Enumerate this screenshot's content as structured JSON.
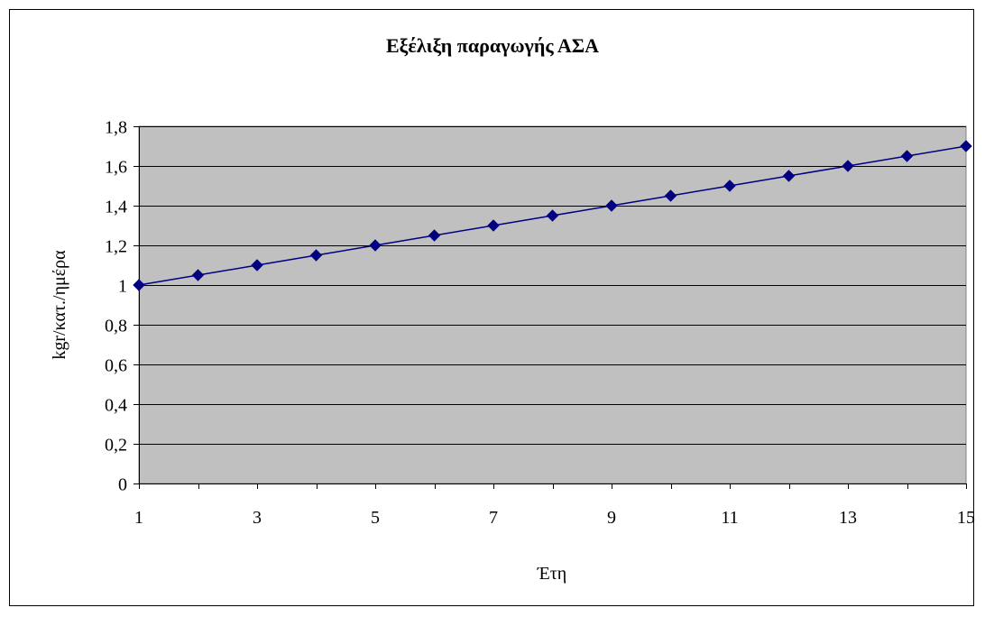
{
  "chart_data": {
    "type": "line",
    "title": "Εξέλιξη παραγωγής ΑΣΑ",
    "xlabel": "Έτη",
    "ylabel": "kgr/κατ./ημέρα",
    "x": [
      1,
      2,
      3,
      4,
      5,
      6,
      7,
      8,
      9,
      10,
      11,
      12,
      13,
      14,
      15
    ],
    "x_tick_labels": [
      "1",
      "3",
      "5",
      "7",
      "9",
      "11",
      "13",
      "15"
    ],
    "y_tick_labels": [
      "0",
      "0,2",
      "0,4",
      "0,6",
      "0,8",
      "1",
      "1,2",
      "1,4",
      "1,6",
      "1,8"
    ],
    "y_ticks": [
      0,
      0.2,
      0.4,
      0.6,
      0.8,
      1.0,
      1.2,
      1.4,
      1.6,
      1.8
    ],
    "ylim": [
      0,
      1.8
    ],
    "xlim": [
      1,
      15
    ],
    "grid": true,
    "legend": "none",
    "series": [
      {
        "values": [
          1.0,
          1.05,
          1.1,
          1.15,
          1.2,
          1.25,
          1.3,
          1.35,
          1.4,
          1.45,
          1.5,
          1.55,
          1.6,
          1.65,
          1.7
        ],
        "color": "#000080",
        "marker": "diamond"
      }
    ],
    "plot_background": "#c0c0c0",
    "gridline_color": "#000000"
  }
}
